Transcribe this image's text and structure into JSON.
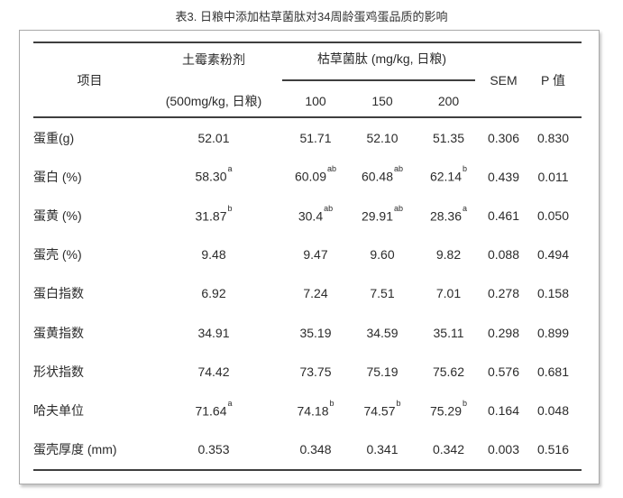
{
  "title": "表3. 日粮中添加枯草菌肽对34周龄蛋鸡蛋品质的影响",
  "table": {
    "header": {
      "item_col": "项目",
      "control_col_line1": "土霉素粉剂",
      "control_col_line2": "(500mg/kg, 日粮)",
      "treatment_group": "枯草菌肽 (mg/kg, 日粮)",
      "treatment_levels": [
        "100",
        "150",
        "200"
      ],
      "sem_col": "SEM",
      "p_col": "P 值"
    },
    "rows": [
      {
        "label": "蛋重(g)",
        "cells": [
          {
            "v": "52.01"
          },
          {
            "v": "51.71"
          },
          {
            "v": "52.10"
          },
          {
            "v": "51.35"
          },
          {
            "v": "0.306"
          },
          {
            "v": "0.830"
          }
        ]
      },
      {
        "label": "蛋白 (%)",
        "cells": [
          {
            "v": "58.30",
            "s": "a"
          },
          {
            "v": "60.09",
            "s": "ab"
          },
          {
            "v": "60.48",
            "s": "ab"
          },
          {
            "v": "62.14",
            "s": "b"
          },
          {
            "v": "0.439"
          },
          {
            "v": "0.011"
          }
        ]
      },
      {
        "label": "蛋黄 (%)",
        "cells": [
          {
            "v": "31.87",
            "s": "b"
          },
          {
            "v": "30.4",
            "s": "ab"
          },
          {
            "v": "29.91",
            "s": "ab"
          },
          {
            "v": "28.36",
            "s": "a"
          },
          {
            "v": "0.461"
          },
          {
            "v": "0.050"
          }
        ]
      },
      {
        "label": "蛋壳 (%)",
        "cells": [
          {
            "v": "9.48"
          },
          {
            "v": "9.47"
          },
          {
            "v": "9.60"
          },
          {
            "v": "9.82"
          },
          {
            "v": "0.088"
          },
          {
            "v": "0.494"
          }
        ]
      },
      {
        "label": "蛋白指数",
        "cells": [
          {
            "v": "6.92"
          },
          {
            "v": "7.24"
          },
          {
            "v": "7.51"
          },
          {
            "v": "7.01"
          },
          {
            "v": "0.278"
          },
          {
            "v": "0.158"
          }
        ]
      },
      {
        "label": "蛋黄指数",
        "cells": [
          {
            "v": "34.91"
          },
          {
            "v": "35.19"
          },
          {
            "v": "34.59"
          },
          {
            "v": "35.11"
          },
          {
            "v": "0.298"
          },
          {
            "v": "0.899"
          }
        ]
      },
      {
        "label": "形状指数",
        "cells": [
          {
            "v": "74.42"
          },
          {
            "v": "73.75"
          },
          {
            "v": "75.19"
          },
          {
            "v": "75.62"
          },
          {
            "v": "0.576"
          },
          {
            "v": "0.681"
          }
        ]
      },
      {
        "label": "哈夫单位",
        "cells": [
          {
            "v": "71.64",
            "s": "a"
          },
          {
            "v": "74.18",
            "s": "b"
          },
          {
            "v": "74.57",
            "s": "b"
          },
          {
            "v": "75.29",
            "s": "b"
          },
          {
            "v": "0.164"
          },
          {
            "v": "0.048"
          }
        ]
      },
      {
        "label": "蛋壳厚度 (mm)",
        "cells": [
          {
            "v": "0.353"
          },
          {
            "v": "0.348"
          },
          {
            "v": "0.341"
          },
          {
            "v": "0.342"
          },
          {
            "v": "0.003"
          },
          {
            "v": "0.516"
          }
        ]
      }
    ]
  },
  "colors": {
    "text": "#2b2b2b",
    "rule": "#3f3f3f",
    "panel_border": "#a9a9a9",
    "background": "#ffffff"
  }
}
